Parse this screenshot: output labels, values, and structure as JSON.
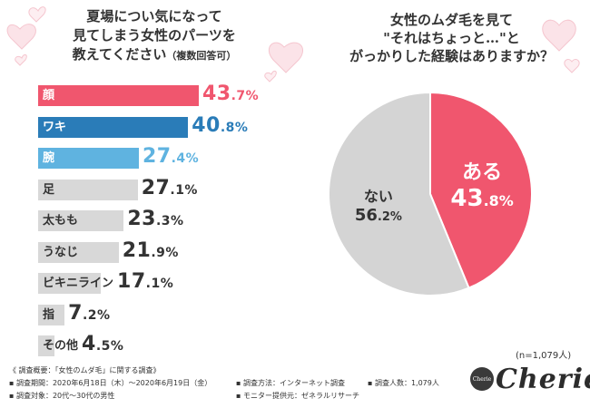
{
  "colors": {
    "accent_pink": "#f0566e",
    "accent_blue": "#2a7cb8",
    "accent_light_blue": "#5fb3e0",
    "gray_bar": "#d8d8d8",
    "gray_pie": "#d4d4d4"
  },
  "left": {
    "title_lines": [
      "夏場につい気になって",
      "見てしまう女性のパーツを",
      "教えてください"
    ],
    "title_note": "（複数回答可）"
  },
  "right": {
    "title_lines": [
      "女性のムダ毛を見て",
      "\"それはちょっと…\"と",
      "がっかりした経験はありますか？"
    ]
  },
  "chart_data": [
    {
      "type": "bar",
      "orientation": "horizontal",
      "categories": [
        "顔",
        "ワキ",
        "腕",
        "足",
        "太もも",
        "うなじ",
        "ビキニライン",
        "指",
        "その他"
      ],
      "values": [
        43.7,
        40.8,
        27.4,
        27.1,
        23.3,
        21.9,
        17.1,
        7.2,
        4.5
      ],
      "value_labels": [
        {
          "int": "43",
          "dec": ".7%"
        },
        {
          "int": "40",
          "dec": ".8%"
        },
        {
          "int": "27",
          "dec": ".4%"
        },
        {
          "int": "27",
          "dec": ".1%"
        },
        {
          "int": "23",
          "dec": ".3%"
        },
        {
          "int": "21",
          "dec": ".9%"
        },
        {
          "int": "17",
          "dec": ".1%"
        },
        {
          "int": "7",
          "dec": ".2%"
        },
        {
          "int": "4",
          "dec": ".5%"
        }
      ],
      "bar_colors": [
        "#f0566e",
        "#2a7cb8",
        "#5fb3e0",
        "#d8d8d8",
        "#d8d8d8",
        "#d8d8d8",
        "#d8d8d8",
        "#d8d8d8",
        "#d8d8d8"
      ],
      "label_colors": [
        "#ffffff",
        "#ffffff",
        "#ffffff",
        "#333333",
        "#333333",
        "#333333",
        "#333333",
        "#333333",
        "#333333"
      ],
      "value_colors": [
        "#f0566e",
        "#2a7cb8",
        "#5fb3e0",
        "#333333",
        "#333333",
        "#333333",
        "#333333",
        "#333333",
        "#333333"
      ],
      "unit": "%"
    },
    {
      "type": "pie",
      "slices": [
        {
          "label": "ある",
          "value": 43.8,
          "int": "43",
          "dec": ".8%",
          "color": "#f0566e",
          "text_color": "#ffffff"
        },
        {
          "label": "ない",
          "value": 56.2,
          "int": "56",
          "dec": ".2%",
          "color": "#d4d4d4",
          "text_color": "#333333"
        }
      ],
      "start": "12 o'clock",
      "direction": "clockwise"
    }
  ],
  "footer": {
    "n_label": "(n=1,079人)",
    "survey_title": "《 調査概要：「女性のムダ毛」に関する調査》",
    "period": "▪ 調査期間：2020年6月18日（木）～2020年6月19日（金）",
    "method": "▪ 調査方法：インターネット調査",
    "count": "▪ 調査人数：1,079人",
    "target": "▪ 調査対象：20代～30代の男性",
    "provider": "▪ モニター提供元：ゼネラルリサーチ",
    "brand": "Cherie",
    "brand_emblem": "Cherie"
  }
}
